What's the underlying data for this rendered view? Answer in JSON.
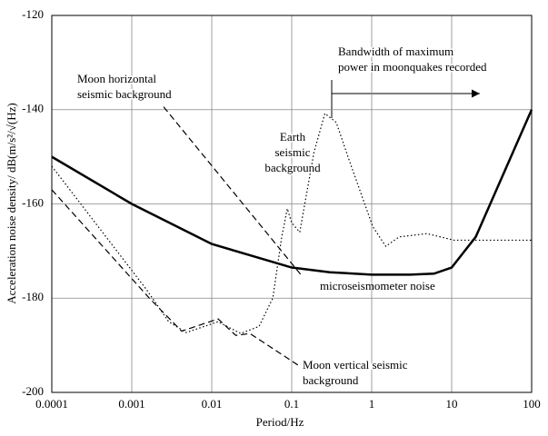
{
  "chart_data": {
    "type": "line",
    "xlabel": "Period/Hz",
    "ylabel": "Acceleration noise density/ dB(m/s²/√(Hz)",
    "xscale": "log",
    "xlim": [
      0.0001,
      100
    ],
    "ylim": [
      -200,
      -120
    ],
    "xticks": [
      0.0001,
      0.001,
      0.01,
      0.1,
      1,
      10,
      100
    ],
    "yticks": [
      -200,
      -180,
      -160,
      -140,
      -120
    ],
    "grid": true,
    "series": [
      {
        "color": "#000000",
        "line_style": "solid",
        "width": 2.5,
        "x": [
          0.0001,
          0.001,
          0.01,
          0.1,
          0.3,
          1,
          3,
          6,
          10,
          20,
          100
        ],
        "values": [
          -150,
          -160,
          -168.5,
          -173.5,
          -174.5,
          -175,
          -175,
          -174.8,
          -173.5,
          -167,
          -140
        ]
      },
      {
        "color": "#000000",
        "line_style": "dotted",
        "width": 1.2,
        "x": [
          0.0001,
          0.0015,
          0.0029,
          0.0048,
          0.012,
          0.023,
          0.039,
          0.058,
          0.075,
          0.088,
          0.1,
          0.126,
          0.19,
          0.26,
          0.36,
          0.53,
          1.03,
          1.5,
          2.2,
          4.9,
          10.7,
          100
        ],
        "values": [
          -152,
          -178,
          -185,
          -187.3,
          -185,
          -187.5,
          -186,
          -180,
          -167,
          -161,
          -164,
          -166,
          -149,
          -140.8,
          -142.7,
          -151,
          -164.8,
          -169,
          -167,
          -166.3,
          -167.7,
          -167.7
        ]
      },
      {
        "color": "#000000",
        "line_style": "dashed",
        "width": 1.2,
        "x": [
          0.0025,
          0.13
        ],
        "values": [
          -139.4,
          -175
        ]
      },
      {
        "color": "#000000",
        "line_style": "dashed",
        "width": 1.2,
        "x": [
          0.0001,
          0.0017,
          0.0042,
          0.012,
          0.02,
          0.03,
          0.13
        ],
        "values": [
          -157,
          -180.2,
          -187,
          -184.4,
          -187.9,
          -187.5,
          -194.6
        ]
      }
    ],
    "annotations": [
      {
        "lines": [
          "Moon horizontal",
          "seismic background"
        ]
      },
      {
        "lines": [
          "Earth",
          "seismic",
          "background"
        ]
      },
      {
        "lines": [
          "Bandwidth of maximum",
          "power in moonquakes recorded"
        ]
      },
      {
        "lines": [
          "microseismometer noise"
        ]
      },
      {
        "lines": [
          "Moon vertical seismic",
          "background"
        ]
      }
    ]
  }
}
